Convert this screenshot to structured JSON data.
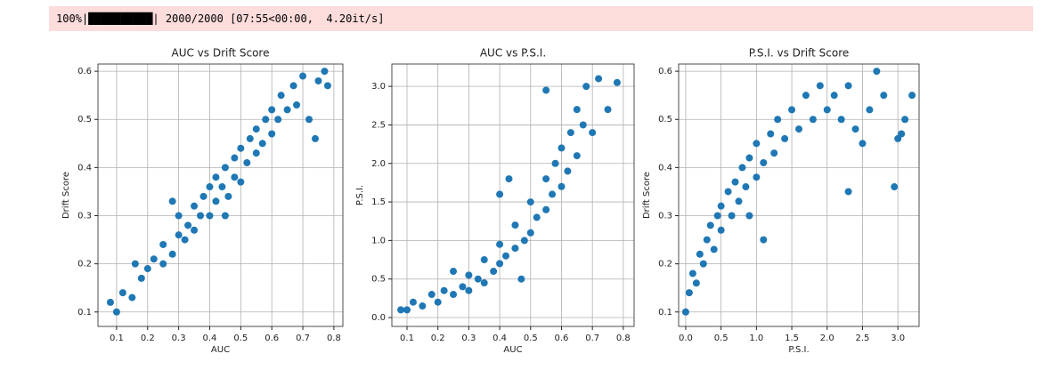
{
  "progress": {
    "text": "100%|██████████| 2000/2000 [07:55<00:00,  4.20it/s]"
  },
  "chart_data": [
    {
      "type": "scatter",
      "title": "AUC vs Drift Score",
      "x_label": "AUC",
      "y_label": "Drift Score",
      "color": "#1f77b4",
      "grid": true,
      "xlim": [
        0.04,
        0.829
      ],
      "ylim": [
        0.07,
        0.615
      ],
      "xticks": [
        0.1,
        0.2,
        0.3,
        0.4,
        0.5,
        0.6,
        0.7,
        0.8
      ],
      "yticks": [
        0.1,
        0.2,
        0.3,
        0.4,
        0.5,
        0.6
      ],
      "x": [
        0.08,
        0.1,
        0.12,
        0.15,
        0.18,
        0.2,
        0.22,
        0.25,
        0.25,
        0.28,
        0.3,
        0.3,
        0.32,
        0.33,
        0.35,
        0.35,
        0.37,
        0.38,
        0.4,
        0.4,
        0.42,
        0.42,
        0.44,
        0.45,
        0.46,
        0.48,
        0.48,
        0.5,
        0.5,
        0.52,
        0.53,
        0.55,
        0.55,
        0.57,
        0.58,
        0.6,
        0.6,
        0.62,
        0.63,
        0.65,
        0.67,
        0.68,
        0.7,
        0.72,
        0.74,
        0.75,
        0.77,
        0.78,
        0.16,
        0.45,
        0.28
      ],
      "values": [
        0.12,
        0.1,
        0.14,
        0.13,
        0.17,
        0.19,
        0.21,
        0.2,
        0.24,
        0.22,
        0.26,
        0.3,
        0.25,
        0.28,
        0.27,
        0.32,
        0.3,
        0.34,
        0.3,
        0.36,
        0.33,
        0.38,
        0.36,
        0.4,
        0.34,
        0.38,
        0.42,
        0.37,
        0.44,
        0.41,
        0.46,
        0.43,
        0.48,
        0.45,
        0.5,
        0.47,
        0.52,
        0.5,
        0.55,
        0.52,
        0.57,
        0.53,
        0.59,
        0.5,
        0.46,
        0.58,
        0.6,
        0.57,
        0.2,
        0.3,
        0.33
      ]
    },
    {
      "type": "scatter",
      "title": "AUC vs P.S.I.",
      "x_label": "AUC",
      "y_label": "P.S.I.",
      "color": "#1f77b4",
      "grid": true,
      "xlim": [
        0.051,
        0.835
      ],
      "ylim": [
        -0.115,
        3.29
      ],
      "xticks": [
        0.1,
        0.2,
        0.3,
        0.4,
        0.5,
        0.6,
        0.7,
        0.8
      ],
      "yticks": [
        {
          "value": 0,
          "label": "0.0"
        },
        0.5,
        {
          "value": 1,
          "label": "1.0"
        },
        1.5,
        {
          "value": 2,
          "label": "2.0"
        },
        2.5,
        {
          "value": 3,
          "label": "3.0"
        }
      ],
      "x": [
        0.08,
        0.1,
        0.12,
        0.15,
        0.18,
        0.2,
        0.22,
        0.25,
        0.28,
        0.3,
        0.3,
        0.33,
        0.35,
        0.35,
        0.38,
        0.4,
        0.4,
        0.42,
        0.45,
        0.45,
        0.48,
        0.5,
        0.5,
        0.52,
        0.55,
        0.55,
        0.57,
        0.58,
        0.6,
        0.6,
        0.62,
        0.63,
        0.65,
        0.65,
        0.67,
        0.68,
        0.7,
        0.72,
        0.75,
        0.78,
        0.4,
        0.43,
        0.55,
        0.25,
        0.47
      ],
      "values": [
        0.1,
        0.1,
        0.2,
        0.15,
        0.3,
        0.2,
        0.35,
        0.3,
        0.4,
        0.35,
        0.55,
        0.5,
        0.45,
        0.75,
        0.6,
        0.7,
        0.95,
        0.8,
        0.9,
        1.2,
        1.0,
        1.1,
        1.5,
        1.3,
        1.4,
        1.8,
        1.6,
        2.0,
        1.7,
        2.2,
        1.9,
        2.4,
        2.1,
        2.7,
        2.5,
        3.0,
        2.4,
        3.1,
        2.7,
        3.05,
        1.6,
        1.8,
        2.95,
        0.6,
        0.5
      ]
    },
    {
      "type": "scatter",
      "title": "P.S.I. vs Drift Score",
      "x_label": "P.S.I.",
      "y_label": "Drift Score",
      "color": "#1f77b4",
      "grid": true,
      "xlim": [
        -0.1,
        3.3
      ],
      "ylim": [
        0.07,
        0.615
      ],
      "xticks": [
        {
          "value": 0,
          "label": "0.0"
        },
        0.5,
        {
          "value": 1,
          "label": "1.0"
        },
        1.5,
        {
          "value": 2,
          "label": "2.0"
        },
        2.5,
        {
          "value": 3,
          "label": "3.0"
        }
      ],
      "yticks": [
        0.1,
        0.2,
        0.3,
        0.4,
        0.5,
        0.6
      ],
      "x": [
        0.0,
        0.05,
        0.1,
        0.15,
        0.2,
        0.25,
        0.3,
        0.35,
        0.4,
        0.45,
        0.5,
        0.5,
        0.6,
        0.65,
        0.7,
        0.75,
        0.8,
        0.85,
        0.9,
        1.0,
        1.0,
        1.1,
        1.2,
        1.25,
        1.3,
        1.4,
        1.5,
        1.6,
        1.7,
        1.8,
        1.9,
        2.0,
        2.1,
        2.2,
        2.3,
        2.4,
        2.5,
        2.6,
        2.7,
        2.8,
        2.95,
        3.0,
        3.05,
        3.1,
        3.2,
        1.1,
        0.9,
        2.3
      ],
      "values": [
        0.1,
        0.14,
        0.18,
        0.16,
        0.22,
        0.2,
        0.25,
        0.28,
        0.23,
        0.3,
        0.32,
        0.27,
        0.35,
        0.3,
        0.37,
        0.33,
        0.4,
        0.36,
        0.42,
        0.38,
        0.45,
        0.41,
        0.47,
        0.43,
        0.5,
        0.46,
        0.52,
        0.48,
        0.55,
        0.5,
        0.57,
        0.52,
        0.55,
        0.5,
        0.57,
        0.48,
        0.45,
        0.52,
        0.6,
        0.55,
        0.36,
        0.46,
        0.47,
        0.5,
        0.55,
        0.25,
        0.3,
        0.35
      ]
    }
  ]
}
